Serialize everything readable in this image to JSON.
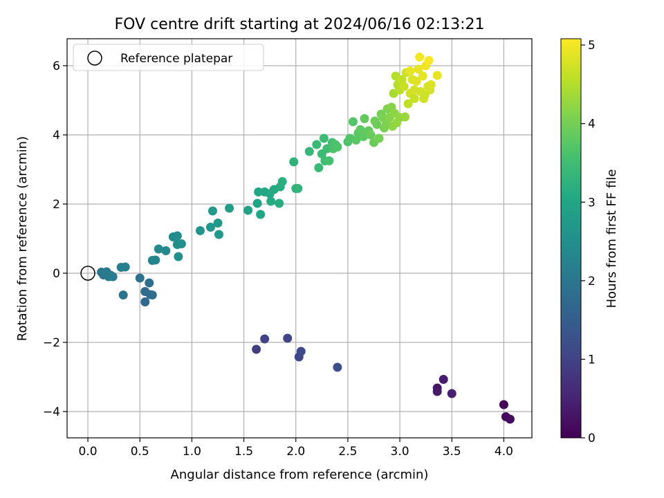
{
  "chart_data": {
    "type": "scatter",
    "title": "FOV centre drift starting at 2024/06/16 02:13:21",
    "xlabel": "Angular distance from reference (arcmin)",
    "ylabel": "Rotation from reference (arcmin)",
    "xlim": [
      -0.2,
      4.27
    ],
    "ylim": [
      -4.76,
      6.78
    ],
    "xticks": [
      "0.0",
      "0.5",
      "1.0",
      "1.5",
      "2.0",
      "2.5",
      "3.0",
      "3.5",
      "4.0"
    ],
    "xtick_values": [
      0,
      0.5,
      1,
      1.5,
      2,
      2.5,
      3,
      3.5,
      4
    ],
    "yticks": [
      "−4",
      "−2",
      "0",
      "2",
      "4",
      "6"
    ],
    "ytick_values": [
      -4,
      -2,
      0,
      2,
      4,
      6
    ],
    "grid": true,
    "legend": {
      "position": "top-left",
      "entries": [
        "Reference platepar"
      ]
    },
    "colorbar": {
      "label": "Hours from first FF file",
      "colormap": "viridis",
      "range": [
        0,
        5.08
      ],
      "ticks": [
        "0",
        "1",
        "2",
        "3",
        "4",
        "5"
      ],
      "tick_values": [
        0,
        1,
        2,
        3,
        4,
        5
      ]
    },
    "reference_point": {
      "x": 0,
      "y": 0,
      "name": "Reference platepar"
    },
    "series": [
      {
        "points": [
          {
            "x": 4.0,
            "y": -3.8,
            "c": 0.05
          },
          {
            "x": 4.02,
            "y": -4.15,
            "c": 0.1
          },
          {
            "x": 4.06,
            "y": -4.22,
            "c": 0.15
          },
          {
            "x": 3.36,
            "y": -3.32,
            "c": 0.3
          },
          {
            "x": 3.36,
            "y": -3.42,
            "c": 0.35
          },
          {
            "x": 3.42,
            "y": -3.07,
            "c": 0.4
          },
          {
            "x": 3.5,
            "y": -3.48,
            "c": 0.45
          },
          {
            "x": 1.62,
            "y": -2.2,
            "c": 0.9
          },
          {
            "x": 1.7,
            "y": -1.9,
            "c": 1.0
          },
          {
            "x": 1.92,
            "y": -1.88,
            "c": 1.05
          },
          {
            "x": 2.03,
            "y": -2.42,
            "c": 1.1
          },
          {
            "x": 2.05,
            "y": -2.26,
            "c": 1.15
          },
          {
            "x": 2.4,
            "y": -2.72,
            "c": 1.2
          },
          {
            "x": 0.55,
            "y": -0.83,
            "c": 1.7
          },
          {
            "x": 0.55,
            "y": -0.53,
            "c": 1.75
          },
          {
            "x": 0.6,
            "y": -0.62,
            "c": 1.8
          },
          {
            "x": 0.62,
            "y": -0.63,
            "c": 1.8
          },
          {
            "x": 0.59,
            "y": -0.28,
            "c": 1.85
          },
          {
            "x": 0.5,
            "y": -0.14,
            "c": 1.9
          },
          {
            "x": 0.34,
            "y": -0.63,
            "c": 1.95
          },
          {
            "x": 0.13,
            "y": 0.03,
            "c": 2.0
          },
          {
            "x": 0.15,
            "y": -0.05,
            "c": 2.0
          },
          {
            "x": 0.18,
            "y": 0.04,
            "c": 2.05
          },
          {
            "x": 0.2,
            "y": -0.1,
            "c": 2.05
          },
          {
            "x": 0.22,
            "y": -0.06,
            "c": 2.1
          },
          {
            "x": 0.24,
            "y": -0.1,
            "c": 2.1
          },
          {
            "x": 0.32,
            "y": 0.17,
            "c": 2.15
          },
          {
            "x": 0.36,
            "y": 0.18,
            "c": 2.15
          },
          {
            "x": 0.62,
            "y": 0.37,
            "c": 2.3
          },
          {
            "x": 0.65,
            "y": 0.38,
            "c": 2.3
          },
          {
            "x": 0.68,
            "y": 0.7,
            "c": 2.35
          },
          {
            "x": 0.75,
            "y": 0.65,
            "c": 2.35
          },
          {
            "x": 0.82,
            "y": 1.05,
            "c": 2.4
          },
          {
            "x": 0.86,
            "y": 1.08,
            "c": 2.45
          },
          {
            "x": 0.86,
            "y": 0.83,
            "c": 2.45
          },
          {
            "x": 0.9,
            "y": 0.85,
            "c": 2.5
          },
          {
            "x": 0.87,
            "y": 0.48,
            "c": 2.5
          },
          {
            "x": 1.08,
            "y": 1.23,
            "c": 2.6
          },
          {
            "x": 1.18,
            "y": 1.33,
            "c": 2.65
          },
          {
            "x": 1.2,
            "y": 1.8,
            "c": 2.7
          },
          {
            "x": 1.25,
            "y": 1.45,
            "c": 2.7
          },
          {
            "x": 1.26,
            "y": 1.12,
            "c": 2.7
          },
          {
            "x": 1.36,
            "y": 1.88,
            "c": 2.8
          },
          {
            "x": 1.54,
            "y": 1.82,
            "c": 2.9
          },
          {
            "x": 1.63,
            "y": 2.02,
            "c": 2.95
          },
          {
            "x": 1.64,
            "y": 2.35,
            "c": 3.0
          },
          {
            "x": 1.66,
            "y": 1.7,
            "c": 3.0
          },
          {
            "x": 1.7,
            "y": 2.35,
            "c": 3.05
          },
          {
            "x": 1.75,
            "y": 2.3,
            "c": 3.05
          },
          {
            "x": 1.76,
            "y": 2.08,
            "c": 3.1
          },
          {
            "x": 1.79,
            "y": 2.42,
            "c": 3.1
          },
          {
            "x": 1.84,
            "y": 2.02,
            "c": 3.15
          },
          {
            "x": 1.85,
            "y": 2.5,
            "c": 3.15
          },
          {
            "x": 1.87,
            "y": 2.65,
            "c": 3.2
          },
          {
            "x": 1.98,
            "y": 3.22,
            "c": 3.25
          },
          {
            "x": 2.0,
            "y": 2.45,
            "c": 3.25
          },
          {
            "x": 2.02,
            "y": 2.45,
            "c": 3.3
          },
          {
            "x": 2.13,
            "y": 3.52,
            "c": 3.35
          },
          {
            "x": 2.2,
            "y": 3.72,
            "c": 3.4
          },
          {
            "x": 2.22,
            "y": 3.05,
            "c": 3.4
          },
          {
            "x": 2.25,
            "y": 3.45,
            "c": 3.45
          },
          {
            "x": 2.27,
            "y": 3.9,
            "c": 3.45
          },
          {
            "x": 2.28,
            "y": 3.25,
            "c": 3.5
          },
          {
            "x": 2.3,
            "y": 3.6,
            "c": 3.5
          },
          {
            "x": 2.32,
            "y": 3.25,
            "c": 3.55
          },
          {
            "x": 2.35,
            "y": 3.78,
            "c": 3.55
          },
          {
            "x": 2.36,
            "y": 3.6,
            "c": 3.6
          },
          {
            "x": 2.38,
            "y": 3.72,
            "c": 3.6
          },
          {
            "x": 2.4,
            "y": 3.65,
            "c": 3.65
          },
          {
            "x": 2.5,
            "y": 3.8,
            "c": 3.65
          },
          {
            "x": 2.52,
            "y": 3.9,
            "c": 3.7
          },
          {
            "x": 2.55,
            "y": 4.38,
            "c": 3.7
          },
          {
            "x": 2.58,
            "y": 3.85,
            "c": 3.75
          },
          {
            "x": 2.6,
            "y": 4.05,
            "c": 3.75
          },
          {
            "x": 2.62,
            "y": 4.15,
            "c": 3.8
          },
          {
            "x": 2.65,
            "y": 3.95,
            "c": 3.8
          },
          {
            "x": 2.66,
            "y": 4.47,
            "c": 3.85
          },
          {
            "x": 2.7,
            "y": 4.12,
            "c": 3.85
          },
          {
            "x": 2.72,
            "y": 4.0,
            "c": 3.9
          },
          {
            "x": 2.75,
            "y": 3.78,
            "c": 3.9
          },
          {
            "x": 2.76,
            "y": 4.4,
            "c": 3.95
          },
          {
            "x": 2.78,
            "y": 4.3,
            "c": 3.95
          },
          {
            "x": 2.8,
            "y": 3.9,
            "c": 4.0
          },
          {
            "x": 2.82,
            "y": 4.6,
            "c": 4.0
          },
          {
            "x": 2.84,
            "y": 4.5,
            "c": 4.05
          },
          {
            "x": 2.85,
            "y": 4.2,
            "c": 4.05
          },
          {
            "x": 2.87,
            "y": 4.35,
            "c": 4.1
          },
          {
            "x": 2.88,
            "y": 4.75,
            "c": 4.1
          },
          {
            "x": 2.9,
            "y": 4.5,
            "c": 4.15
          },
          {
            "x": 2.92,
            "y": 4.8,
            "c": 4.15
          },
          {
            "x": 2.93,
            "y": 4.25,
            "c": 4.2
          },
          {
            "x": 2.95,
            "y": 4.62,
            "c": 4.2
          },
          {
            "x": 2.97,
            "y": 4.35,
            "c": 4.25
          },
          {
            "x": 3.0,
            "y": 4.5,
            "c": 4.25
          },
          {
            "x": 3.05,
            "y": 4.52,
            "c": 4.3
          },
          {
            "x": 2.94,
            "y": 5.2,
            "c": 4.4
          },
          {
            "x": 2.96,
            "y": 5.7,
            "c": 4.5
          },
          {
            "x": 2.98,
            "y": 5.45,
            "c": 4.5
          },
          {
            "x": 3.0,
            "y": 5.3,
            "c": 4.55
          },
          {
            "x": 3.02,
            "y": 5.6,
            "c": 4.6
          },
          {
            "x": 3.04,
            "y": 5.4,
            "c": 4.65
          },
          {
            "x": 3.06,
            "y": 5.8,
            "c": 4.7
          },
          {
            "x": 3.08,
            "y": 4.9,
            "c": 4.6
          },
          {
            "x": 3.1,
            "y": 5.2,
            "c": 4.7
          },
          {
            "x": 3.12,
            "y": 5.6,
            "c": 4.8
          },
          {
            "x": 3.14,
            "y": 5.3,
            "c": 4.75
          },
          {
            "x": 3.16,
            "y": 5.55,
            "c": 4.85
          },
          {
            "x": 3.18,
            "y": 5.9,
            "c": 4.9
          },
          {
            "x": 3.19,
            "y": 6.25,
            "c": 5.0
          },
          {
            "x": 3.2,
            "y": 5.25,
            "c": 4.75
          },
          {
            "x": 3.22,
            "y": 5.7,
            "c": 4.9
          },
          {
            "x": 3.23,
            "y": 5.05,
            "c": 4.7
          },
          {
            "x": 3.25,
            "y": 6.0,
            "c": 4.95
          },
          {
            "x": 3.27,
            "y": 5.4,
            "c": 4.8
          },
          {
            "x": 3.28,
            "y": 6.15,
            "c": 5.05
          },
          {
            "x": 3.29,
            "y": 5.3,
            "c": 4.75
          },
          {
            "x": 3.3,
            "y": 5.45,
            "c": 4.8
          },
          {
            "x": 3.36,
            "y": 5.72,
            "c": 4.9
          },
          {
            "x": 3.24,
            "y": 5.15,
            "c": 4.7
          },
          {
            "x": 3.1,
            "y": 5.85,
            "c": 4.9
          },
          {
            "x": 3.14,
            "y": 5.05,
            "c": 4.65
          }
        ]
      }
    ]
  }
}
